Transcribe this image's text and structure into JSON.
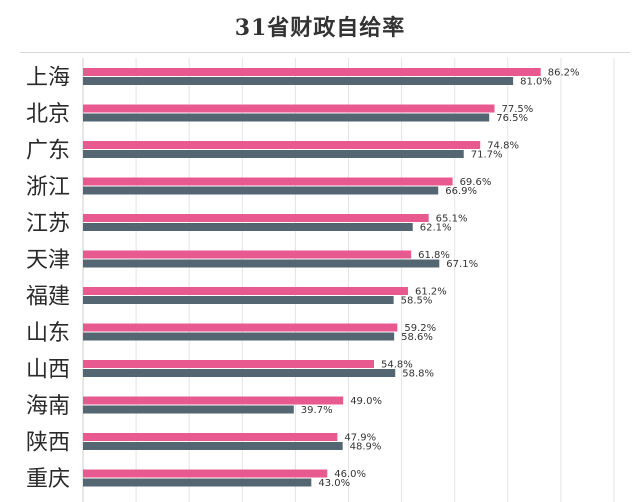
{
  "chart_data": {
    "type": "bar",
    "orientation": "horizontal",
    "title": "31省财政自给率",
    "categories": [
      "上海",
      "北京",
      "广东",
      "浙江",
      "江苏",
      "天津",
      "福建",
      "山东",
      "山西",
      "海南",
      "陕西",
      "重庆"
    ],
    "series": [
      {
        "color": "#e8598f",
        "values": [
          86.2,
          77.5,
          74.8,
          69.6,
          65.1,
          61.8,
          61.2,
          59.2,
          54.8,
          49.0,
          47.9,
          46.0
        ],
        "labels": [
          "86.2%",
          "77.5%",
          "74.8%",
          "69.6%",
          "65.1%",
          "61.8%",
          "61.2%",
          "59.2%",
          "54.8%",
          "49.0%",
          "47.9%",
          "46.0%"
        ]
      },
      {
        "color": "#536671",
        "values": [
          81.0,
          76.5,
          71.7,
          66.9,
          62.1,
          67.1,
          58.5,
          58.6,
          58.8,
          39.7,
          48.9,
          43.0
        ],
        "labels": [
          "81.0%",
          "76.5%",
          "71.7%",
          "66.9%",
          "62.1%",
          "67.1%",
          "58.5%",
          "58.6%",
          "58.8%",
          "39.7%",
          "48.9%",
          "43.0%"
        ]
      }
    ],
    "xlim": [
      0,
      100
    ],
    "grid": true,
    "legend": "none"
  }
}
